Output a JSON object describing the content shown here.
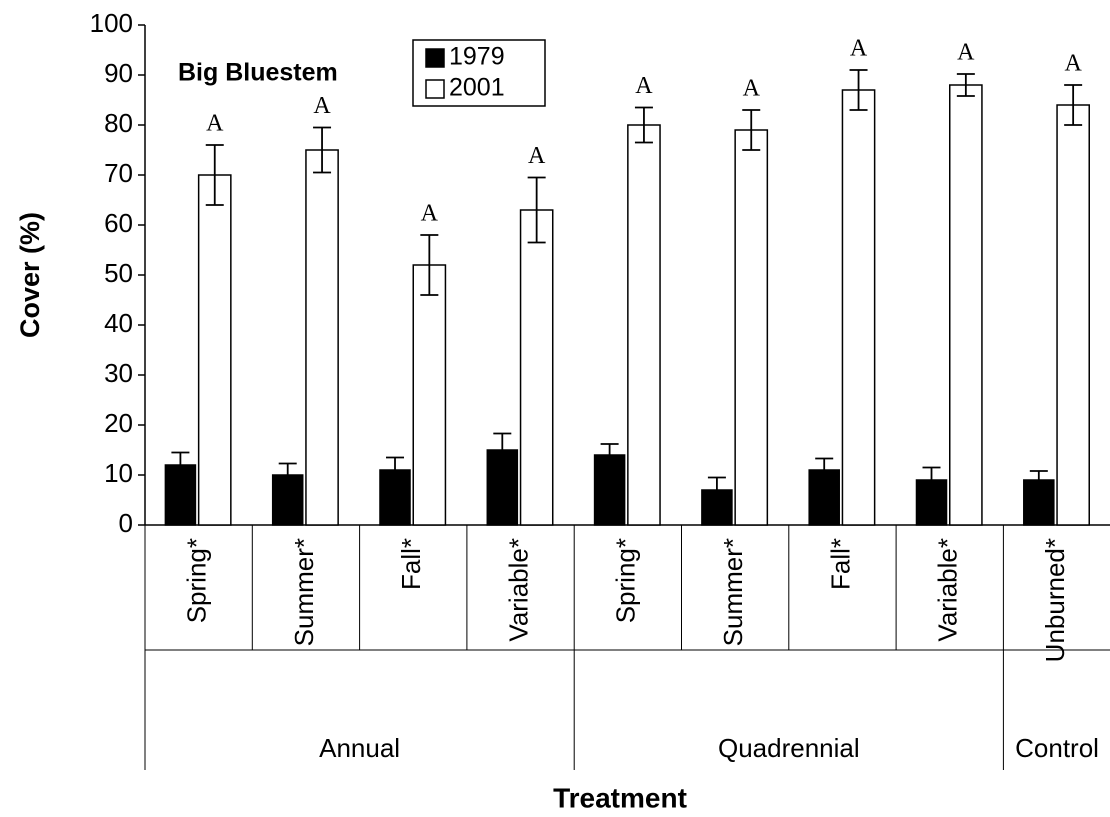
{
  "chart_data": {
    "type": "bar",
    "title": "Big Bluestem",
    "x_label": "Treatment",
    "y_label": "Cover (%)",
    "categories": [
      "Spring*",
      "Summer*",
      "Fall*",
      "Variable*",
      "Spring*",
      "Summer*",
      "Fall*",
      "Variable*",
      "Unburned*"
    ],
    "groups": [
      {
        "name": "Annual",
        "count": 4
      },
      {
        "name": "Quadrennial",
        "count": 4
      },
      {
        "name": "Control",
        "count": 1
      }
    ],
    "series": [
      {
        "name": "1979",
        "color": "#000000",
        "values": [
          12,
          10,
          11,
          15,
          14,
          7,
          11,
          9,
          9
        ],
        "errors": [
          2.5,
          2.3,
          2.5,
          3.3,
          2.2,
          2.5,
          2.3,
          2.5,
          1.8
        ]
      },
      {
        "name": "2001",
        "color": "#ffffff",
        "values": [
          70,
          75,
          52,
          63,
          80,
          79,
          87,
          88,
          84
        ],
        "errors": [
          6,
          4.5,
          6,
          6.5,
          3.5,
          4,
          4,
          2.2,
          4
        ],
        "letters": [
          "A",
          "A",
          "A",
          "A",
          "A",
          "A",
          "A",
          "A",
          "A"
        ]
      }
    ],
    "ylim": [
      0,
      100
    ],
    "yticks": [
      0,
      10,
      20,
      30,
      40,
      50,
      60,
      70,
      80,
      90,
      100
    ],
    "grid": false
  }
}
